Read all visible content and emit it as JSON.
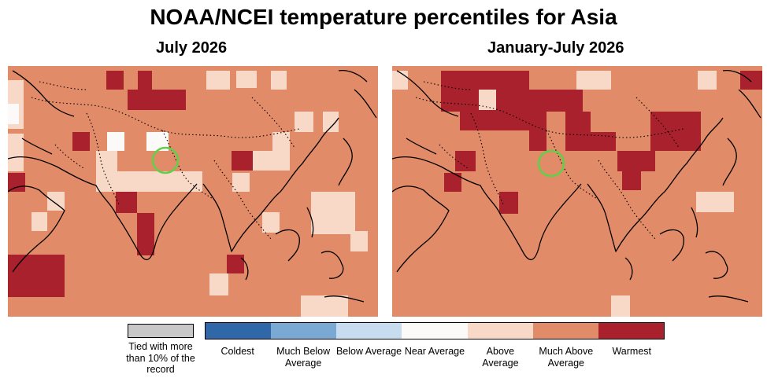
{
  "title": "NOAA/NCEI temperature percentiles for Asia",
  "panels": {
    "left": {
      "subtitle": "July 2026"
    },
    "right": {
      "subtitle": "January-July 2026"
    }
  },
  "legend": {
    "tied_label": "Tied with more than 10% of the record",
    "tied_color": "#c8c8c8",
    "categories": [
      {
        "label": "Coldest",
        "color": "#2f67a8"
      },
      {
        "label": "Much Below Average",
        "color": "#7aa9d4"
      },
      {
        "label": "Below Average",
        "color": "#c7dcee"
      },
      {
        "label": "Near Average",
        "color": "#fcfaf8"
      },
      {
        "label": "Above Average",
        "color": "#f8d9c7"
      },
      {
        "label": "Much Above Average",
        "color": "#e28b68"
      },
      {
        "label": "Warmest",
        "color": "#a8212c"
      }
    ]
  },
  "marker": {
    "description_color": "#5fd04a"
  }
}
